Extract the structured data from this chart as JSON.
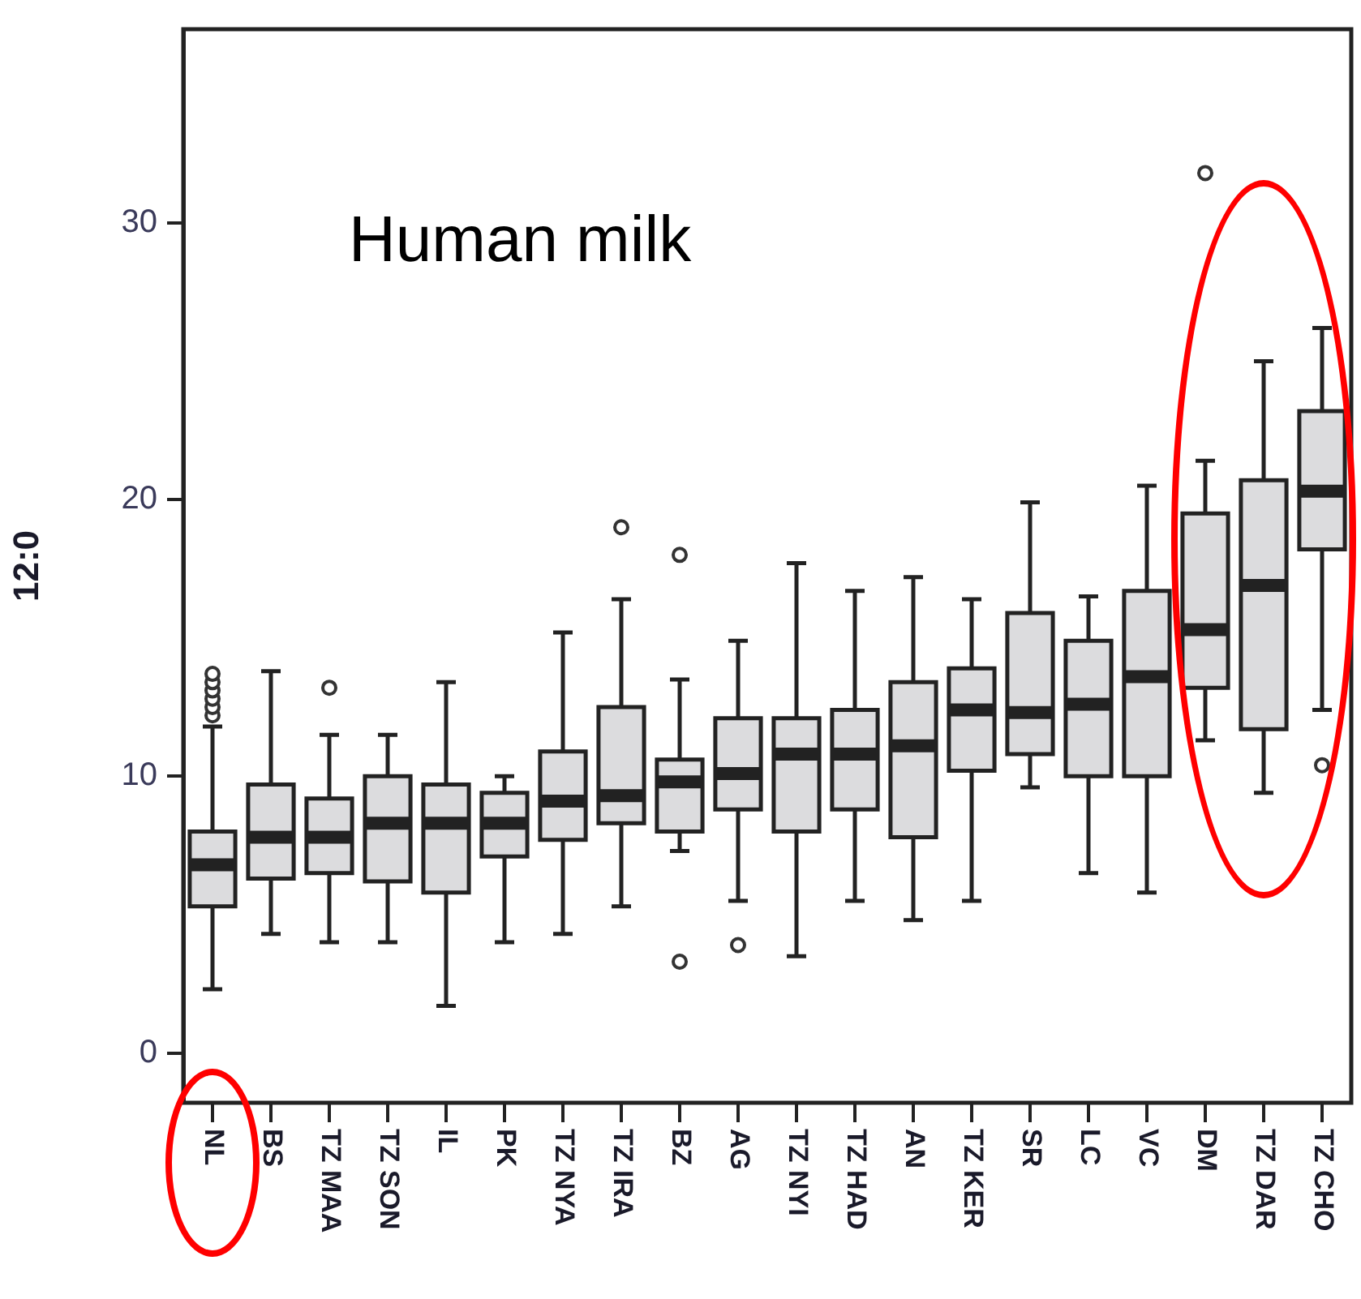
{
  "chart_data": {
    "type": "box",
    "title": "Human milk",
    "ylabel": "12:0",
    "color": "#dcdcde",
    "categories": [
      "NL",
      "BS",
      "TZ MAA",
      "TZ SON",
      "IL",
      "PK",
      "TZ NYA",
      "TZ IRA",
      "BZ",
      "AG",
      "TZ NYI",
      "TZ HAD",
      "AN",
      "TZ KER",
      "SR",
      "LC",
      "VC",
      "DM",
      "TZ DAR",
      "TZ CHO"
    ],
    "boxes": [
      {
        "low": 2.3,
        "q1": 5.3,
        "median": 6.8,
        "q3": 8.0,
        "high": 11.8,
        "outliers": [
          12.2,
          12.5,
          12.8,
          13.1,
          13.4,
          13.7
        ]
      },
      {
        "low": 4.3,
        "q1": 6.3,
        "median": 7.8,
        "q3": 9.7,
        "high": 13.8
      },
      {
        "low": 4.0,
        "q1": 6.5,
        "median": 7.8,
        "q3": 9.2,
        "high": 11.5,
        "outliers": [
          13.2
        ]
      },
      {
        "low": 4.0,
        "q1": 6.2,
        "median": 8.3,
        "q3": 10.0,
        "high": 11.5
      },
      {
        "low": 1.7,
        "q1": 5.8,
        "median": 8.3,
        "q3": 9.7,
        "high": 13.4
      },
      {
        "low": 4.0,
        "q1": 7.1,
        "median": 8.3,
        "q3": 9.4,
        "high": 10.0
      },
      {
        "low": 4.3,
        "q1": 7.7,
        "median": 9.1,
        "q3": 10.9,
        "high": 15.2
      },
      {
        "low": 5.3,
        "q1": 8.3,
        "median": 9.3,
        "q3": 12.5,
        "high": 16.4,
        "outliers": [
          19.0
        ]
      },
      {
        "low": 7.3,
        "q1": 8.0,
        "median": 9.8,
        "q3": 10.6,
        "high": 13.5,
        "outliers": [
          18.0,
          3.3
        ]
      },
      {
        "low": 5.5,
        "q1": 8.8,
        "median": 10.1,
        "q3": 12.1,
        "high": 14.9,
        "outliers": [
          3.9
        ]
      },
      {
        "low": 3.5,
        "q1": 8.0,
        "median": 10.8,
        "q3": 12.1,
        "high": 17.7
      },
      {
        "low": 5.5,
        "q1": 8.8,
        "median": 10.8,
        "q3": 12.4,
        "high": 16.7
      },
      {
        "low": 4.8,
        "q1": 7.8,
        "median": 11.1,
        "q3": 13.4,
        "high": 17.2
      },
      {
        "low": 5.5,
        "q1": 10.2,
        "median": 12.4,
        "q3": 13.9,
        "high": 16.4
      },
      {
        "low": 9.6,
        "q1": 10.8,
        "median": 12.3,
        "q3": 15.9,
        "high": 19.9
      },
      {
        "low": 6.5,
        "q1": 10.0,
        "median": 12.6,
        "q3": 14.9,
        "high": 16.5
      },
      {
        "low": 5.8,
        "q1": 10.0,
        "median": 13.6,
        "q3": 16.7,
        "high": 20.5
      },
      {
        "low": 11.3,
        "q1": 13.2,
        "median": 15.3,
        "q3": 19.5,
        "high": 21.4,
        "outliers": [
          31.8
        ]
      },
      {
        "low": 9.4,
        "q1": 11.7,
        "median": 16.9,
        "q3": 20.7,
        "high": 25.0
      },
      {
        "low": 12.4,
        "q1": 18.2,
        "median": 20.3,
        "q3": 23.2,
        "high": 26.2,
        "outliers": [
          10.4
        ]
      }
    ],
    "ylim": [
      -1.8,
      37
    ],
    "yticks": [
      0,
      10,
      20,
      30
    ],
    "grid": false
  }
}
